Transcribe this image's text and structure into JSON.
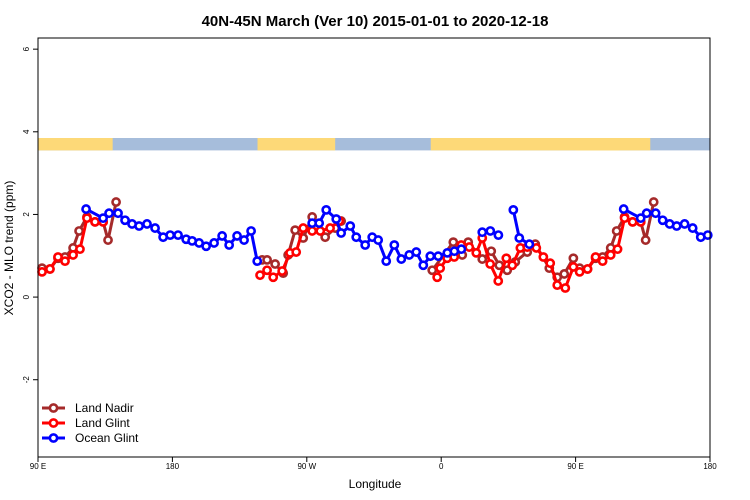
{
  "chart_data": {
    "type": "line",
    "title": "40N-45N March (Ver 10)   2015-01-01 to 2020-12-18",
    "xlabel": "Longitude",
    "ylabel": "XCO2 - MLO trend (ppm)",
    "xlim": [
      90,
      540
    ],
    "ylim": [
      -3.87,
      6.27
    ],
    "x_ticks": [
      {
        "value": 90,
        "label": "90 E"
      },
      {
        "value": 180,
        "label": "180"
      },
      {
        "value": 270,
        "label": "90 W"
      },
      {
        "value": 360,
        "label": "0"
      },
      {
        "value": 450,
        "label": "90 E"
      },
      {
        "value": 540,
        "label": "180"
      }
    ],
    "y_ticks": [
      {
        "value": 6,
        "label": "6"
      },
      {
        "value": 4,
        "label": "4"
      },
      {
        "value": 2,
        "label": "2"
      },
      {
        "value": 0,
        "label": "0"
      },
      {
        "value": -2,
        "label": "-2"
      }
    ],
    "grid": false,
    "legend_position": "bottom-left",
    "wrap_period": 360,
    "land_mask_band": {
      "value_range": [
        3.55,
        3.85
      ],
      "land_color": "#FDD978",
      "ocean_color": "#A6BDDB",
      "land_lon_ranges": [
        [
          90,
          140
        ],
        [
          237,
          289
        ],
        [
          353,
          479
        ]
      ]
    },
    "series": [
      {
        "name": "Land Nadir",
        "color": "#A52A2A",
        "segments": [
          [
            [
              92.7,
              0.7
            ],
            [
              98.0,
              0.68
            ],
            [
              103.4,
              0.94
            ],
            [
              108.1,
              0.97
            ],
            [
              113.5,
              1.19
            ],
            [
              117.5,
              1.6
            ],
            [
              122.8,
              1.94
            ],
            [
              128.2,
              1.82
            ],
            [
              133.6,
              1.82
            ],
            [
              136.9,
              1.38
            ],
            [
              142.3,
              2.3
            ]
          ],
          [
            [
              240.1,
              0.9
            ],
            [
              243.4,
              0.9
            ],
            [
              248.8,
              0.8
            ],
            [
              254.2,
              0.58
            ],
            [
              257.5,
              1.02
            ],
            [
              262.2,
              1.62
            ],
            [
              267.6,
              1.43
            ],
            [
              273.6,
              1.94
            ],
            [
              282.3,
              1.45
            ],
            [
              289.0,
              1.67
            ],
            [
              293.0,
              1.84
            ]
          ],
          [
            [
              354.0,
              0.65
            ],
            [
              368.1,
              1.33
            ],
            [
              374.1,
              1.02
            ],
            [
              378.1,
              1.33
            ],
            [
              387.5,
              0.92
            ],
            [
              393.5,
              1.11
            ],
            [
              398.9,
              0.77
            ],
            [
              404.2,
              0.65
            ],
            [
              409.6,
              0.85
            ],
            [
              417.6,
              1.09
            ],
            [
              423.0,
              1.28
            ],
            [
              432.4,
              0.7
            ],
            [
              437.7,
              0.48
            ],
            [
              442.4,
              0.56
            ],
            [
              448.5,
              0.94
            ]
          ]
        ]
      },
      {
        "name": "Land Glint",
        "color": "#FF0000",
        "segments": [
          [
            [
              92.7,
              0.61
            ],
            [
              98.0,
              0.68
            ],
            [
              103.4,
              0.97
            ],
            [
              108.1,
              0.87
            ],
            [
              113.5,
              1.02
            ],
            [
              118.1,
              1.16
            ],
            [
              122.8,
              1.91
            ],
            [
              128.2,
              1.82
            ],
            [
              133.6,
              1.82
            ]
          ],
          [
            [
              238.7,
              0.53
            ],
            [
              243.4,
              0.65
            ],
            [
              247.5,
              0.48
            ],
            [
              253.5,
              0.63
            ],
            [
              258.8,
              1.07
            ],
            [
              262.9,
              1.09
            ],
            [
              267.6,
              1.67
            ],
            [
              273.6,
              1.6
            ],
            [
              279.0,
              1.6
            ],
            [
              285.6,
              1.67
            ],
            [
              291.7,
              1.84
            ]
          ],
          [
            [
              357.3,
              0.48
            ],
            [
              359.3,
              0.7
            ],
            [
              364.0,
              0.94
            ],
            [
              368.7,
              0.97
            ],
            [
              373.4,
              1.26
            ],
            [
              378.8,
              1.21
            ],
            [
              383.5,
              1.07
            ],
            [
              387.5,
              1.43
            ],
            [
              392.8,
              0.8
            ],
            [
              398.2,
              0.39
            ],
            [
              403.6,
              0.94
            ],
            [
              407.6,
              0.77
            ],
            [
              413.0,
              1.19
            ],
            [
              417.6,
              1.21
            ],
            [
              423.7,
              1.19
            ],
            [
              428.4,
              0.97
            ],
            [
              433.0,
              0.82
            ],
            [
              437.7,
              0.29
            ],
            [
              443.1,
              0.22
            ],
            [
              448.5,
              0.73
            ]
          ]
        ]
      },
      {
        "name": "Ocean Glint",
        "color": "#0000FF",
        "segments": [
          [
            [
              122.2,
              2.13
            ],
            [
              133.6,
              1.91
            ],
            [
              137.6,
              2.03
            ],
            [
              143.6,
              2.03
            ],
            [
              148.3,
              1.86
            ],
            [
              153.0,
              1.77
            ],
            [
              157.7,
              1.72
            ],
            [
              163.0,
              1.77
            ],
            [
              168.4,
              1.67
            ],
            [
              173.8,
              1.45
            ],
            [
              178.5,
              1.5
            ],
            [
              183.8,
              1.5
            ],
            [
              189.2,
              1.4
            ],
            [
              193.2,
              1.36
            ],
            [
              197.9,
              1.31
            ],
            [
              202.6,
              1.23
            ],
            [
              207.9,
              1.31
            ],
            [
              213.3,
              1.48
            ],
            [
              218.0,
              1.26
            ],
            [
              223.3,
              1.48
            ],
            [
              228.0,
              1.38
            ],
            [
              232.7,
              1.6
            ],
            [
              236.8,
              0.87
            ]
          ],
          [
            [
              273.6,
              1.79
            ],
            [
              278.3,
              1.79
            ],
            [
              283.0,
              2.11
            ],
            [
              289.7,
              1.89
            ],
            [
              293.0,
              1.55
            ],
            [
              299.1,
              1.72
            ],
            [
              303.1,
              1.45
            ],
            [
              309.1,
              1.26
            ],
            [
              313.8,
              1.45
            ],
            [
              317.8,
              1.38
            ],
            [
              323.2,
              0.87
            ],
            [
              328.6,
              1.26
            ],
            [
              333.3,
              0.92
            ],
            [
              338.6,
              1.02
            ],
            [
              343.3,
              1.09
            ],
            [
              348.0,
              0.77
            ],
            [
              352.7,
              0.99
            ],
            [
              358.0,
              0.99
            ],
            [
              364.1,
              1.07
            ],
            [
              368.8,
              1.11
            ],
            [
              373.5,
              1.16
            ]
          ],
          [
            [
              387.5,
              1.57
            ],
            [
              392.9,
              1.6
            ],
            [
              398.3,
              1.5
            ]
          ],
          [
            [
              408.3,
              2.11
            ],
            [
              412.3,
              1.43
            ],
            [
              419.0,
              1.28
            ]
          ]
        ]
      }
    ]
  }
}
